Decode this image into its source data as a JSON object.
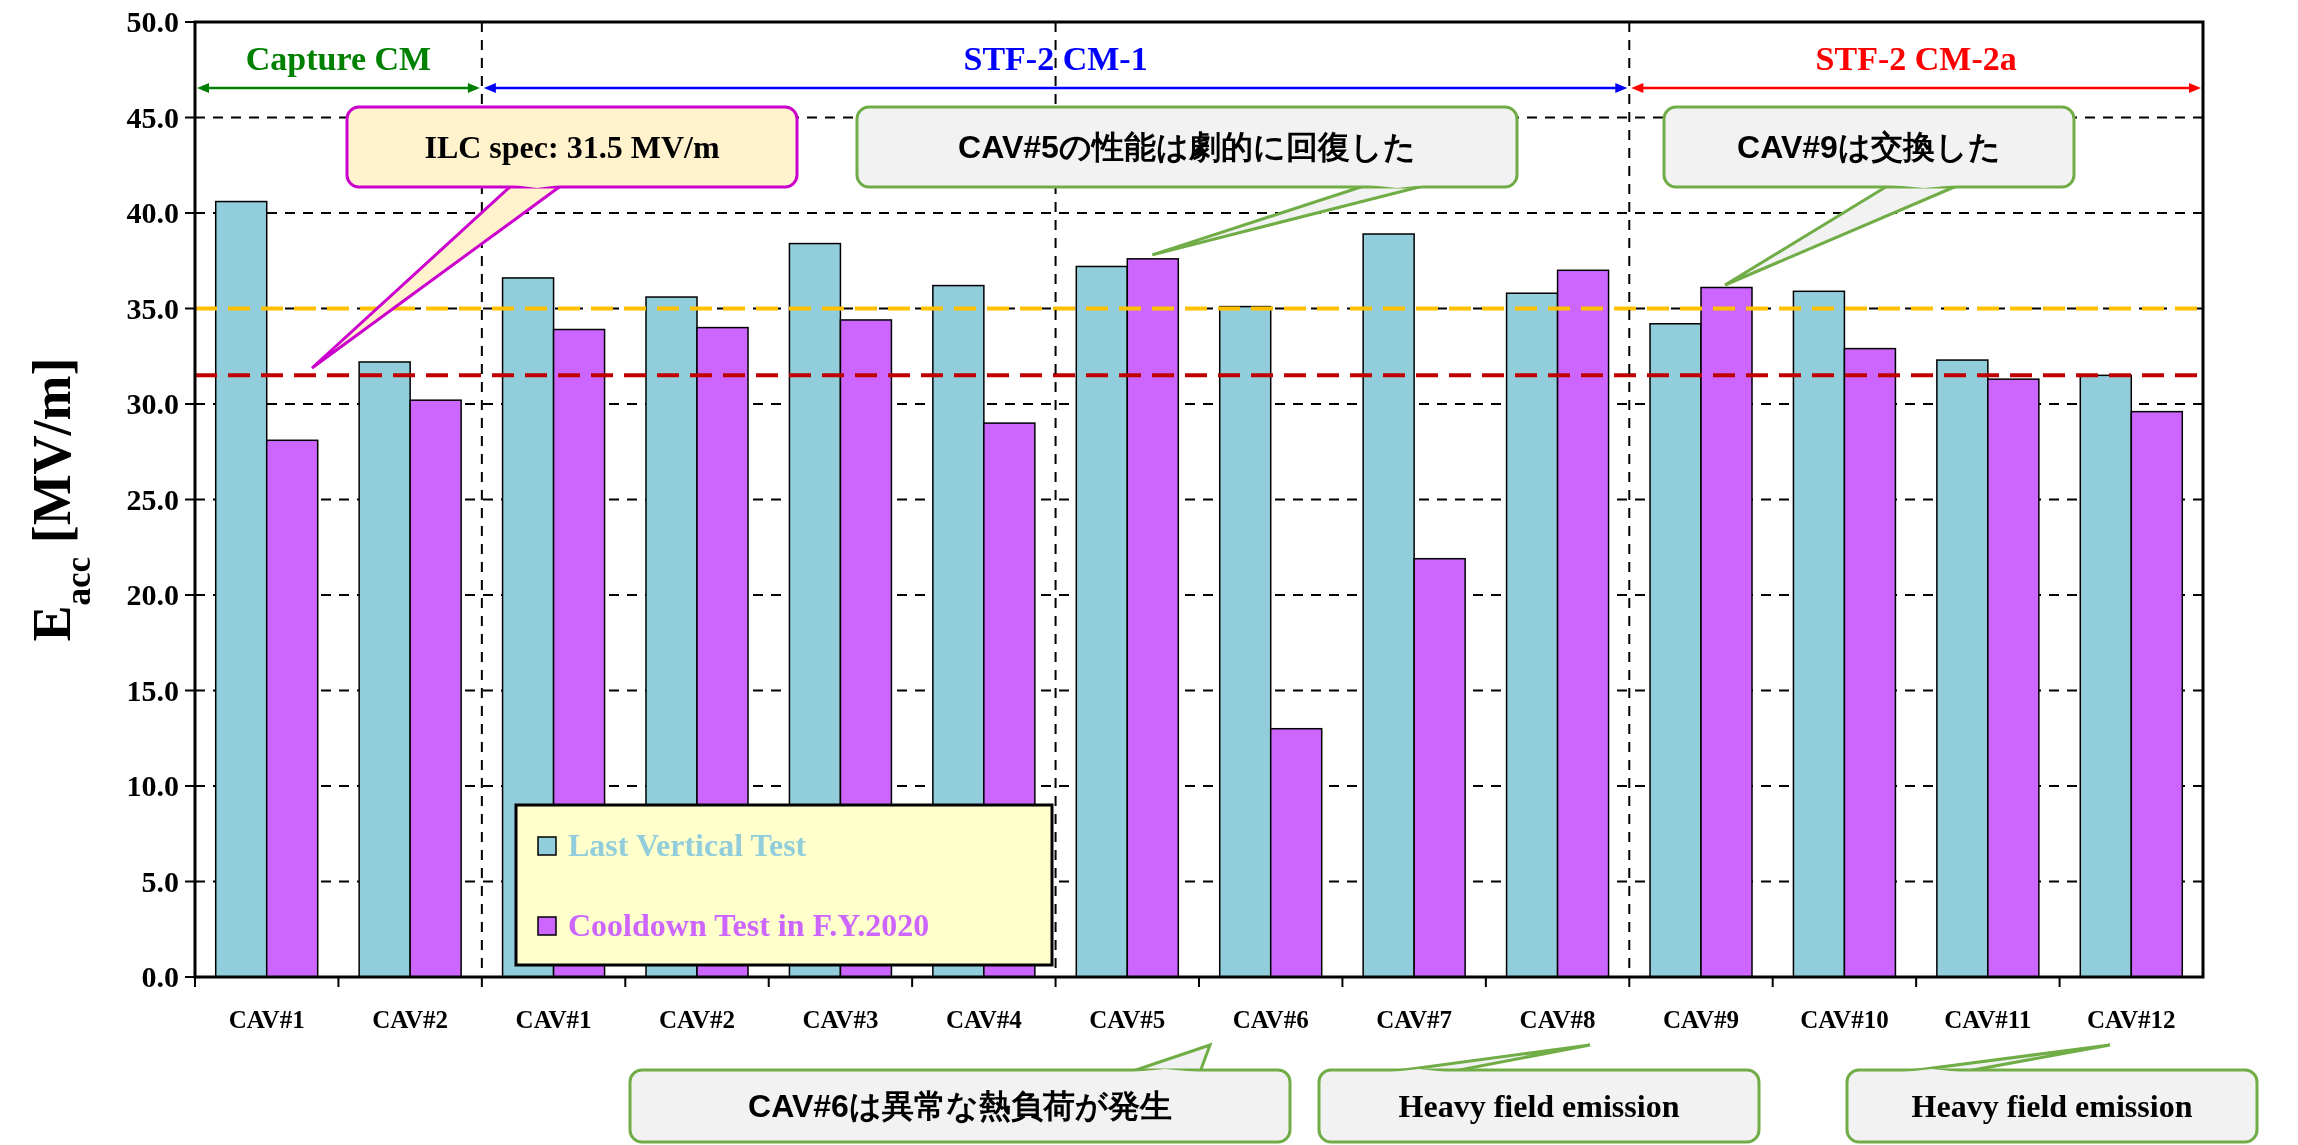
{
  "chart_data": {
    "type": "bar",
    "ylabel": "E$_{acc}$ [MV/m]",
    "categories": [
      "CAV#1",
      "CAV#2",
      "CAV#1",
      "CAV#2",
      "CAV#3",
      "CAV#4",
      "CAV#5",
      "CAV#6",
      "CAV#7",
      "CAV#8",
      "CAV#9",
      "CAV#10",
      "CAV#11",
      "CAV#12"
    ],
    "series": [
      {
        "name": "Last Vertical Test",
        "color": "#92cddc",
        "values": [
          40.6,
          32.2,
          36.6,
          35.6,
          38.4,
          36.2,
          37.2,
          35.1,
          38.9,
          35.8,
          34.2,
          35.9,
          32.3,
          31.5
        ]
      },
      {
        "name": "Cooldown Test in F.Y.2020",
        "color": "#cc66ff",
        "values": [
          28.1,
          30.2,
          33.9,
          34.0,
          34.4,
          29.0,
          37.6,
          13.0,
          21.9,
          37.0,
          36.1,
          32.9,
          31.3,
          29.6
        ]
      }
    ],
    "ylim": [
      0,
      50
    ],
    "yticks": [
      {
        "value": 0,
        "label": "0.0"
      },
      {
        "value": 5,
        "label": "5.0"
      },
      {
        "value": 10,
        "label": "10.0"
      },
      {
        "value": 15,
        "label": "15.0"
      },
      {
        "value": 20,
        "label": "20.0"
      },
      {
        "value": 25,
        "label": "25.0"
      },
      {
        "value": 30,
        "label": "30.0"
      },
      {
        "value": 35,
        "label": "35.0"
      },
      {
        "value": 40,
        "label": "40.0"
      },
      {
        "value": 45,
        "label": "45.0"
      },
      {
        "value": 50,
        "label": "50.0"
      }
    ],
    "grid": "y",
    "legend": "bottom left",
    "ref_lines": [
      {
        "axis": "y",
        "value": 35,
        "color": "#ffc000",
        "line_style": "dashed"
      },
      {
        "axis": "y",
        "value": 31.5,
        "color": "#c00000",
        "line_style": "dashed"
      }
    ],
    "annotations": [
      "ILC spec: 31.5 MV/m",
      {
        "text": "CAV#5の性能は劇的に回復した",
        "x": "CAV#5",
        "y": 37.6
      },
      "CAV#9は交換した",
      "CAV#6は異常な熱負荷が発生",
      "Heavy field emission",
      "Heavy field emission",
      "Capture CM",
      "STF-2 CM-1",
      "STF-2 CM-2a"
    ]
  }
}
